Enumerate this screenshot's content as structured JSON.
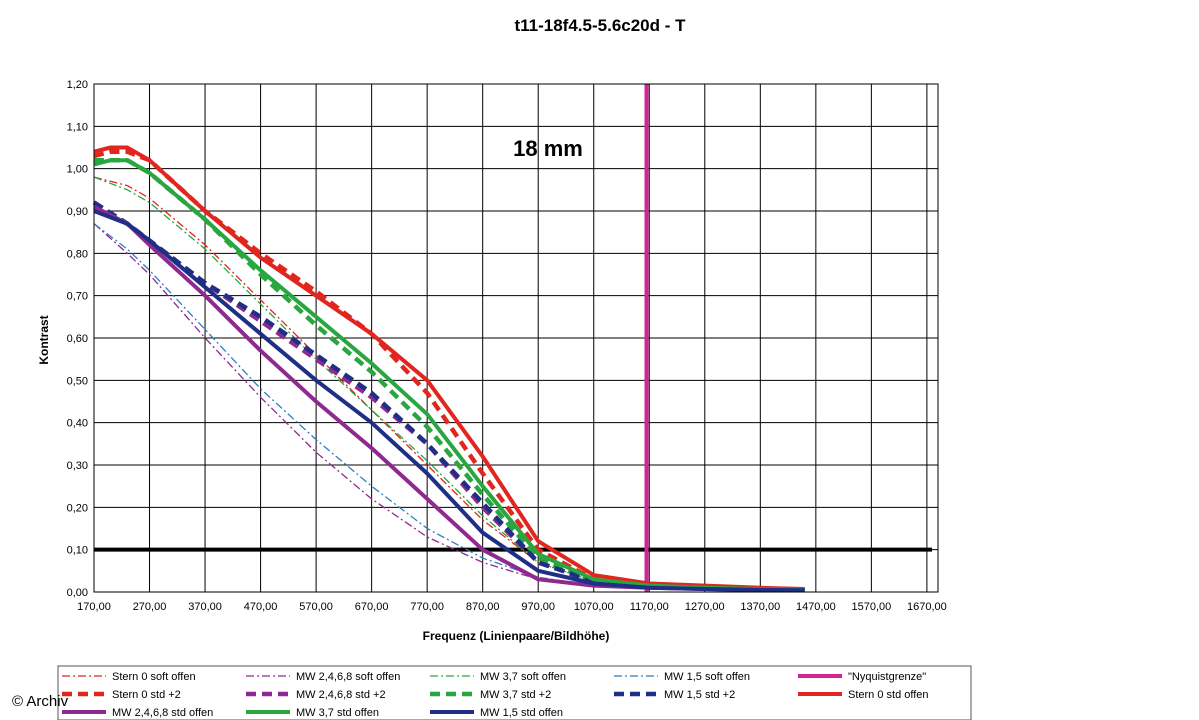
{
  "chart_data": {
    "type": "line",
    "title": "t11-18f4.5-5.6c20d - T",
    "xlabel": "Frequenz (Linienpaare/Bildhöhe)",
    "ylabel": "Kontrast",
    "annotation": "18 mm",
    "copyright": "© Archiv",
    "xlim": [
      170,
      1690
    ],
    "ylim": [
      0,
      1.2
    ],
    "x_ticks": [
      "170,00",
      "270,00",
      "370,00",
      "470,00",
      "570,00",
      "670,00",
      "770,00",
      "870,00",
      "970,00",
      "1070,00",
      "1170,00",
      "1270,00",
      "1370,00",
      "1470,00",
      "1570,00",
      "1670,00"
    ],
    "y_ticks": [
      "0,00",
      "0,10",
      "0,20",
      "0,30",
      "0,40",
      "0,50",
      "0,60",
      "0,70",
      "0,80",
      "0,90",
      "1,00",
      "1,10",
      "1,20"
    ],
    "grid": true,
    "legend_position": "bottom",
    "reference_lines": [
      {
        "orientation": "horizontal",
        "value": 0.1,
        "color": "#000000"
      },
      {
        "orientation": "vertical",
        "value": 1165,
        "color": "#d6239a",
        "series": "\"Nyquistgrenze\""
      }
    ],
    "series": [
      {
        "name": "Stern 0 soft offen",
        "color": "#e0261f",
        "style": "dashdot-thin",
        "x": [
          170,
          230,
          270,
          370,
          470,
          570,
          670,
          770,
          870,
          970,
          1070,
          1170,
          1270,
          1370,
          1450
        ],
        "y": [
          0.98,
          0.96,
          0.93,
          0.82,
          0.69,
          0.56,
          0.43,
          0.3,
          0.17,
          0.07,
          0.025,
          0.015,
          0.01,
          0.007,
          0.005
        ]
      },
      {
        "name": "MW 2,4,6,8 soft offen",
        "color": "#8e2a8f",
        "style": "dashdot-thin",
        "x": [
          170,
          230,
          270,
          370,
          470,
          570,
          670,
          770,
          870,
          970,
          1070,
          1170,
          1270,
          1370,
          1450
        ],
        "y": [
          0.87,
          0.8,
          0.75,
          0.6,
          0.46,
          0.33,
          0.22,
          0.13,
          0.07,
          0.03,
          0.015,
          0.01,
          0.007,
          0.005,
          0.004
        ]
      },
      {
        "name": "MW 3,7 soft offen",
        "color": "#2aa640",
        "style": "dashdot-thin",
        "x": [
          170,
          230,
          270,
          370,
          470,
          570,
          670,
          770,
          870,
          970,
          1070,
          1170,
          1270,
          1370,
          1450
        ],
        "y": [
          0.98,
          0.95,
          0.92,
          0.81,
          0.68,
          0.55,
          0.43,
          0.31,
          0.18,
          0.07,
          0.025,
          0.015,
          0.01,
          0.007,
          0.005
        ]
      },
      {
        "name": "MW 1,5 soft offen",
        "color": "#2f7fc0",
        "style": "dashdot-thin",
        "x": [
          170,
          230,
          270,
          370,
          470,
          570,
          670,
          770,
          870,
          970,
          1070,
          1170,
          1270,
          1370,
          1450
        ],
        "y": [
          0.87,
          0.81,
          0.76,
          0.62,
          0.48,
          0.36,
          0.25,
          0.15,
          0.08,
          0.035,
          0.015,
          0.01,
          0.007,
          0.005,
          0.004
        ]
      },
      {
        "name": "\"Nyquistgrenze\"",
        "color": "#d6239a",
        "style": "solid-thick",
        "x": [
          1165,
          1165
        ],
        "y": [
          0,
          1.2
        ]
      },
      {
        "name": "Stern 0 std +2",
        "color": "#e0261f",
        "style": "dash-thick",
        "x": [
          170,
          200,
          230,
          270,
          370,
          470,
          570,
          670,
          770,
          870,
          970,
          1070,
          1170,
          1270,
          1370,
          1450
        ],
        "y": [
          1.03,
          1.04,
          1.04,
          1.02,
          0.9,
          0.8,
          0.71,
          0.61,
          0.47,
          0.28,
          0.1,
          0.03,
          0.015,
          0.01,
          0.008,
          0.006
        ]
      },
      {
        "name": "MW 2,4,6,8 std +2",
        "color": "#8e2a8f",
        "style": "dash-thick",
        "x": [
          170,
          230,
          270,
          370,
          470,
          570,
          670,
          770,
          870,
          970,
          1070,
          1170,
          1270,
          1370,
          1450
        ],
        "y": [
          0.92,
          0.87,
          0.83,
          0.73,
          0.64,
          0.55,
          0.46,
          0.35,
          0.2,
          0.07,
          0.025,
          0.015,
          0.01,
          0.007,
          0.005
        ]
      },
      {
        "name": "MW 3,7 std +2",
        "color": "#2aa640",
        "style": "dash-thick",
        "x": [
          170,
          230,
          270,
          370,
          470,
          570,
          670,
          770,
          870,
          970,
          1070,
          1170,
          1270,
          1370,
          1450
        ],
        "y": [
          1.02,
          1.02,
          0.99,
          0.88,
          0.75,
          0.63,
          0.52,
          0.39,
          0.23,
          0.08,
          0.025,
          0.015,
          0.01,
          0.007,
          0.005
        ]
      },
      {
        "name": "MW 1,5 std +2",
        "color": "#1f2f86",
        "style": "dash-thick",
        "x": [
          170,
          230,
          270,
          370,
          470,
          570,
          670,
          770,
          870,
          970,
          1070,
          1170,
          1270,
          1370,
          1450
        ],
        "y": [
          0.92,
          0.87,
          0.83,
          0.73,
          0.65,
          0.56,
          0.47,
          0.35,
          0.21,
          0.07,
          0.025,
          0.015,
          0.01,
          0.007,
          0.005
        ]
      },
      {
        "name": "Stern 0 std offen",
        "color": "#e0261f",
        "style": "solid-thick",
        "x": [
          170,
          200,
          230,
          270,
          370,
          470,
          570,
          670,
          770,
          870,
          970,
          1070,
          1170,
          1270,
          1370,
          1450
        ],
        "y": [
          1.04,
          1.05,
          1.05,
          1.02,
          0.9,
          0.79,
          0.7,
          0.61,
          0.5,
          0.32,
          0.12,
          0.04,
          0.02,
          0.015,
          0.01,
          0.007
        ]
      },
      {
        "name": "MW 2,4,6,8 std offen",
        "color": "#8e2a8f",
        "style": "solid-thick",
        "x": [
          170,
          230,
          270,
          370,
          470,
          570,
          670,
          770,
          870,
          970,
          1070,
          1170,
          1270,
          1370,
          1450
        ],
        "y": [
          0.91,
          0.87,
          0.82,
          0.7,
          0.57,
          0.45,
          0.34,
          0.22,
          0.1,
          0.03,
          0.015,
          0.01,
          0.007,
          0.005,
          0.004
        ]
      },
      {
        "name": "MW 3,7 std offen",
        "color": "#2aa640",
        "style": "solid-thick",
        "x": [
          170,
          200,
          230,
          270,
          370,
          470,
          570,
          670,
          770,
          870,
          970,
          1070,
          1170,
          1270,
          1370,
          1450
        ],
        "y": [
          1.01,
          1.02,
          1.02,
          0.99,
          0.88,
          0.76,
          0.65,
          0.54,
          0.42,
          0.25,
          0.09,
          0.03,
          0.015,
          0.01,
          0.007,
          0.005
        ]
      },
      {
        "name": "MW 1,5 std offen",
        "color": "#1f2f86",
        "style": "solid-thick",
        "x": [
          170,
          230,
          270,
          370,
          470,
          570,
          670,
          770,
          870,
          970,
          1070,
          1170,
          1270,
          1370,
          1450
        ],
        "y": [
          0.9,
          0.87,
          0.83,
          0.72,
          0.61,
          0.5,
          0.4,
          0.28,
          0.14,
          0.05,
          0.02,
          0.01,
          0.007,
          0.005,
          0.004
        ]
      }
    ],
    "legend_rows": [
      [
        "Stern 0 soft offen",
        "MW 2,4,6,8 soft offen",
        "MW 3,7 soft offen",
        "MW 1,5 soft offen",
        "\"Nyquistgrenze\""
      ],
      [
        "Stern 0 std +2",
        "MW 2,4,6,8 std +2",
        "MW 3,7 std +2",
        "MW 1,5 std +2",
        "Stern 0 std offen"
      ],
      [
        "MW 2,4,6,8 std offen",
        "MW 3,7 std offen",
        "MW 1,5 std offen"
      ]
    ]
  }
}
